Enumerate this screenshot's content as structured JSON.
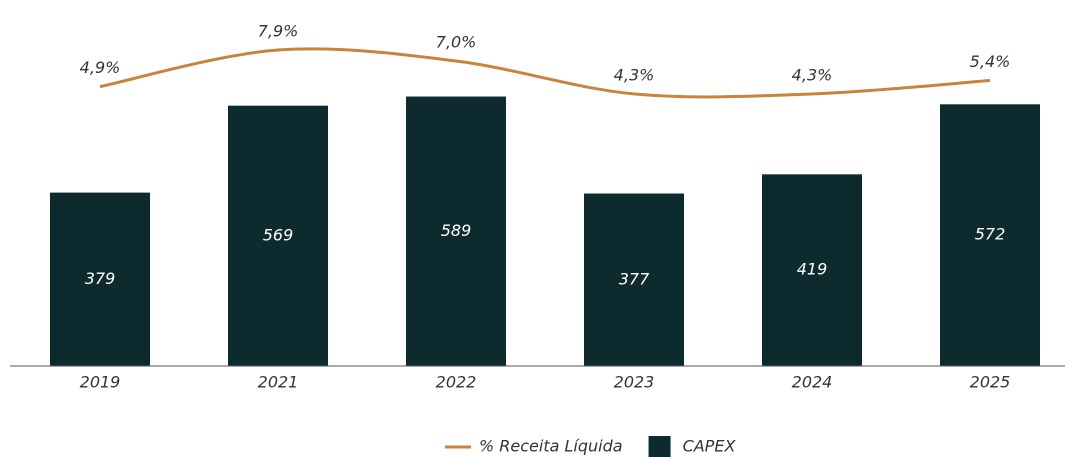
{
  "chart_data": {
    "type": "bar",
    "categories": [
      "2019",
      "2021",
      "2022",
      "2023",
      "2024",
      "2025"
    ],
    "series": [
      {
        "name": "% Receita Líquida",
        "type": "line",
        "axis": "y2",
        "color": "#c8843a",
        "values": [
          4.9,
          7.9,
          7.0,
          4.3,
          4.3,
          5.4
        ],
        "value_labels": [
          "4,9%",
          "7,9%",
          "7,0%",
          "4,3%",
          "4,3%",
          "5,4%"
        ]
      },
      {
        "name": "CAPEX",
        "type": "bar",
        "color": "#0d2b2e",
        "values": [
          379,
          569,
          589,
          377,
          419,
          572
        ]
      }
    ],
    "ylim": [
      0,
      800
    ],
    "y2lim": [
      -18,
      12
    ]
  }
}
